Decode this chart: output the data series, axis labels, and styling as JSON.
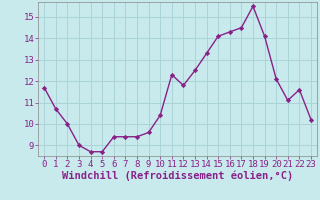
{
  "x": [
    0,
    1,
    2,
    3,
    4,
    5,
    6,
    7,
    8,
    9,
    10,
    11,
    12,
    13,
    14,
    15,
    16,
    17,
    18,
    19,
    20,
    21,
    22,
    23
  ],
  "y": [
    11.7,
    10.7,
    10.0,
    9.0,
    8.7,
    8.7,
    9.4,
    9.4,
    9.4,
    9.6,
    10.4,
    12.3,
    11.8,
    12.5,
    13.3,
    14.1,
    14.3,
    14.5,
    15.5,
    14.1,
    12.1,
    11.1,
    11.6,
    10.2
  ],
  "line_color": "#882288",
  "marker": "D",
  "marker_size": 2.2,
  "bg_color": "#c8eaed",
  "grid_color": "#aad4d8",
  "xlabel": "Windchill (Refroidissement éolien,°C)",
  "xlim": [
    -0.5,
    23.5
  ],
  "ylim": [
    8.5,
    15.7
  ],
  "yticks": [
    9,
    10,
    11,
    12,
    13,
    14,
    15
  ],
  "xticks": [
    0,
    1,
    2,
    3,
    4,
    5,
    6,
    7,
    8,
    9,
    10,
    11,
    12,
    13,
    14,
    15,
    16,
    17,
    18,
    19,
    20,
    21,
    22,
    23
  ],
  "tick_fontsize": 6.5,
  "xlabel_fontsize": 7.5,
  "linewidth": 1.0
}
